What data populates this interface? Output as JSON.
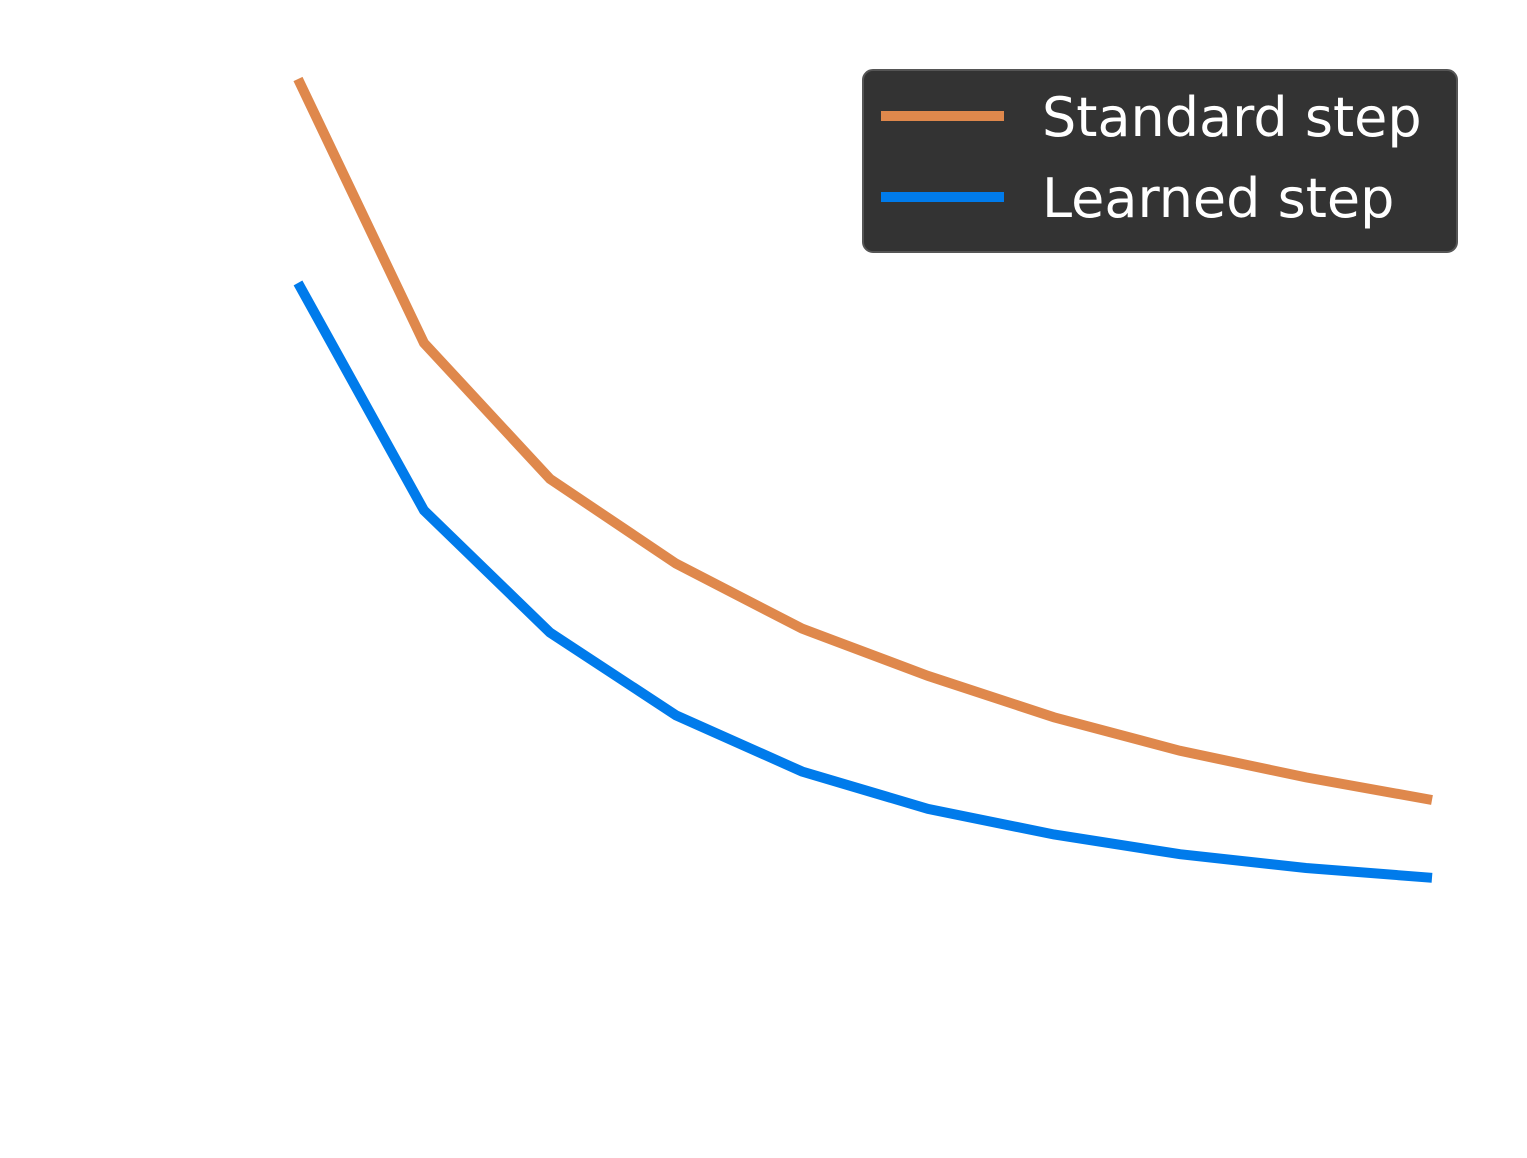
{
  "chart_data": {
    "type": "line",
    "title": "",
    "xlabel": "",
    "ylabel": "",
    "x": [
      1,
      2,
      3,
      4,
      5,
      6,
      7,
      8,
      9,
      10
    ],
    "xlim": [
      1,
      10
    ],
    "ylim": [
      0,
      1
    ],
    "grid": false,
    "axes_visible": false,
    "legend": {
      "placement": "top-right",
      "background": "#333333",
      "text_color": "#ffffff"
    },
    "series": [
      {
        "name": "Standard step",
        "color": "#DF884C",
        "values": [
          1.0,
          0.732,
          0.594,
          0.508,
          0.442,
          0.394,
          0.352,
          0.318,
          0.291,
          0.268
        ]
      },
      {
        "name": "Learned step",
        "color": "#007BEB",
        "values": [
          0.793,
          0.562,
          0.438,
          0.354,
          0.297,
          0.259,
          0.233,
          0.213,
          0.199,
          0.189
        ]
      }
    ]
  }
}
